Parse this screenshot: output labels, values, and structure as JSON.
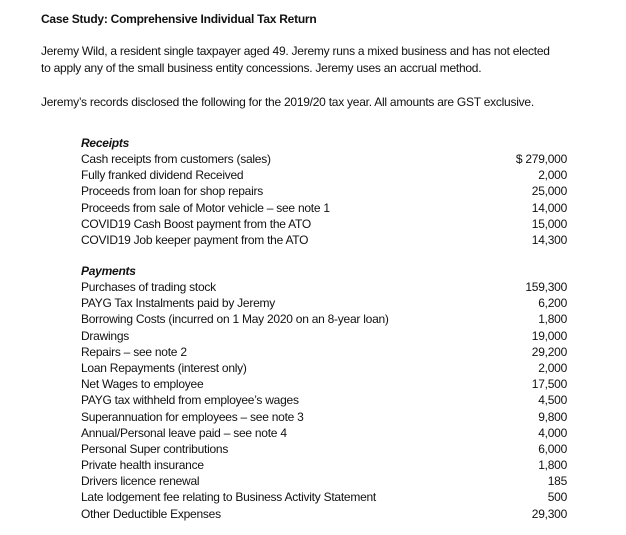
{
  "title": "Case Study: Comprehensive Individual Tax Return",
  "intro": [
    "Jeremy Wild, a resident single taxpayer aged 49. Jeremy runs a mixed business and has not elected",
    "to apply any of the small business entity concessions. Jeremy uses an accrual method."
  ],
  "records_note": "Jeremy’s records disclosed the following for the 2019/20 tax year. All amounts are GST exclusive.",
  "receipts": {
    "heading": "Receipts",
    "items": [
      {
        "label": "Cash receipts from customers (sales)",
        "amount": "$ 279,000"
      },
      {
        "label": "Fully franked dividend Received",
        "amount": "2,000"
      },
      {
        "label": "Proceeds from loan for shop repairs",
        "amount": "25,000"
      },
      {
        "label": "Proceeds from sale of Motor vehicle – see note 1",
        "amount": "14,000"
      },
      {
        "label": "COVID19 Cash Boost payment from the ATO",
        "amount": "15,000"
      },
      {
        "label": "COVID19 Job keeper payment from the ATO",
        "amount": "14,300"
      }
    ]
  },
  "payments": {
    "heading": "Payments",
    "items": [
      {
        "label": "Purchases of trading stock",
        "amount": "159,300"
      },
      {
        "label": "PAYG Tax Instalments paid by Jeremy",
        "amount": "6,200"
      },
      {
        "label": "Borrowing Costs (incurred on 1 May 2020 on an 8-year loan)",
        "amount": "1,800"
      },
      {
        "label": "Drawings",
        "amount": "19,000"
      },
      {
        "label": "Repairs – see note 2",
        "amount": "29,200"
      },
      {
        "label": "Loan Repayments (interest only)",
        "amount": "2,000"
      },
      {
        "label": "Net Wages to employee",
        "amount": "17,500"
      },
      {
        "label": "PAYG tax withheld from employee’s wages",
        "amount": "4,500"
      },
      {
        "label": "Superannuation for employees – see note 3",
        "amount": "9,800"
      },
      {
        "label": "Annual/Personal leave paid – see note 4",
        "amount": "4,000"
      },
      {
        "label": "Personal Super contributions",
        "amount": "6,000"
      },
      {
        "label": "Private health insurance",
        "amount": "1,800"
      },
      {
        "label": "Drivers licence renewal",
        "amount": "185"
      },
      {
        "label": "Late lodgement fee relating to Business Activity Statement",
        "amount": "500"
      },
      {
        "label": "Other Deductible Expenses",
        "amount": "29,300"
      }
    ]
  }
}
